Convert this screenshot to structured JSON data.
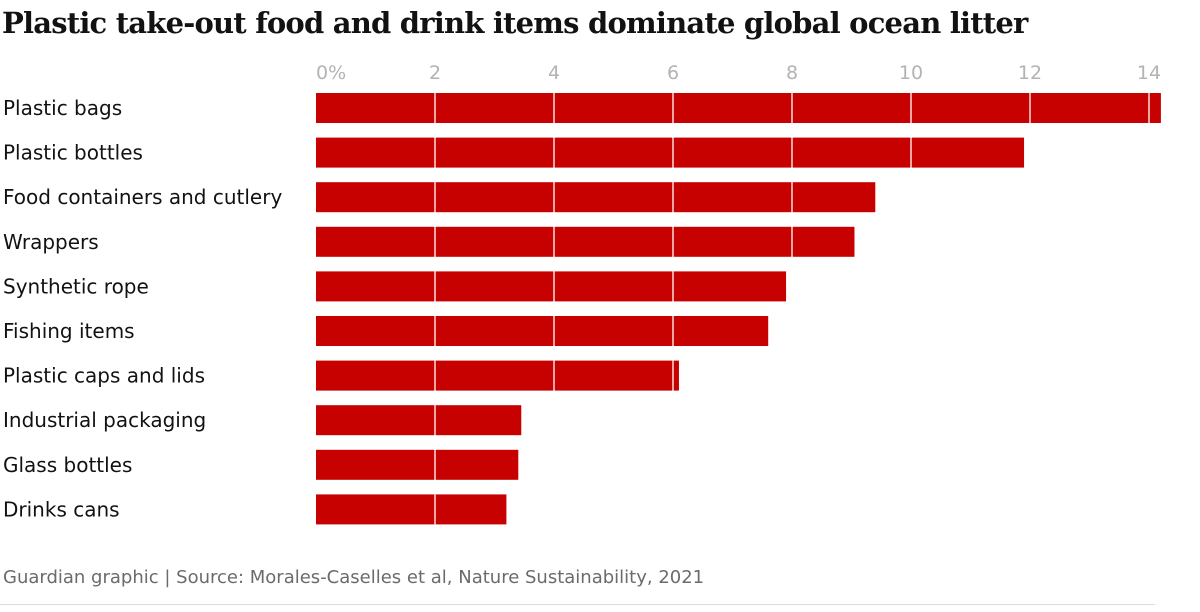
{
  "chart_data": {
    "type": "bar",
    "orientation": "horizontal",
    "title": "Plastic take-out food and drink items dominate global ocean litter",
    "categories": [
      "Plastic bags",
      "Plastic bottles",
      "Food containers and cutlery",
      "Wrappers",
      "Synthetic rope",
      "Fishing items",
      "Plastic caps and lids",
      "Industrial packaging",
      "Glass bottles",
      "Drinks cans"
    ],
    "values": [
      14.2,
      11.9,
      9.4,
      9.05,
      7.9,
      7.6,
      6.1,
      3.45,
      3.4,
      3.2
    ],
    "xlim": [
      0,
      14.2
    ],
    "ticks": [
      0,
      2,
      4,
      6,
      8,
      10,
      12,
      14
    ],
    "tick_labels": [
      "0%",
      "2",
      "4",
      "6",
      "8",
      "10",
      "12",
      "14"
    ],
    "grid": true,
    "axis_position": "top",
    "legend": "none",
    "colors": {
      "bar": "#c70000",
      "gridline": "#ffffff",
      "tick_text": "#b3b3b3",
      "label_text": "#121212"
    }
  },
  "source": "Guardian graphic | Source: Morales-Caselles et al, Nature Sustainability, 2021"
}
